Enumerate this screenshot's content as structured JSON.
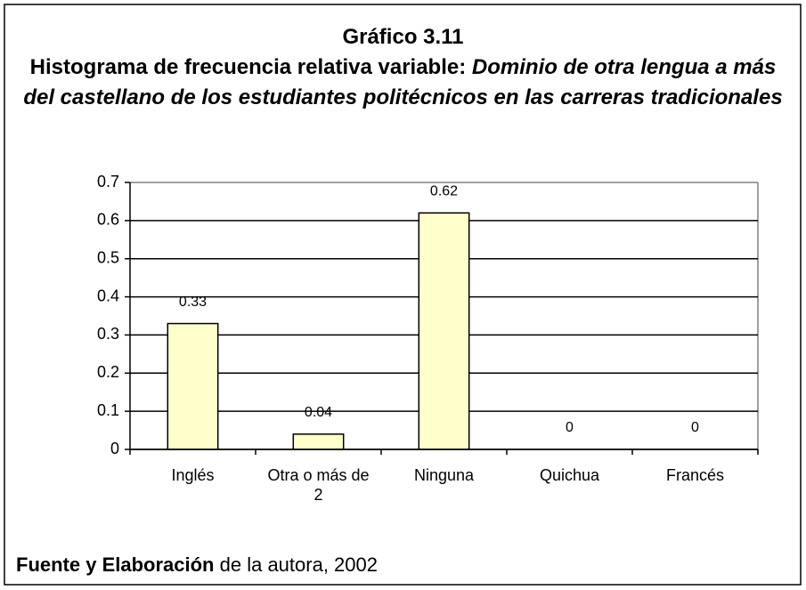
{
  "chart_data": {
    "type": "bar",
    "title": "Gráfico 3.11",
    "subtitle": {
      "text": "Histograma de frecuencia relativa variable:",
      "emphasis": "Dominio de otra lengua a más del castellano de los estudiantes politécnicos en las carreras tradicionales"
    },
    "categories": [
      "Inglés",
      "Otra o más de 2",
      "Ninguna",
      "Quichua",
      "Francés"
    ],
    "values": [
      0.33,
      0.04,
      0.62,
      0,
      0
    ],
    "color": "#ffffcc",
    "ylim": [
      0,
      0.7
    ],
    "yticks": [
      0,
      0.1,
      0.2,
      0.3,
      0.4,
      0.5,
      0.6,
      0.7
    ],
    "grid": true,
    "source": {
      "strong": "Fuente y Elaboración",
      "text": "de la autora, 2002"
    }
  }
}
